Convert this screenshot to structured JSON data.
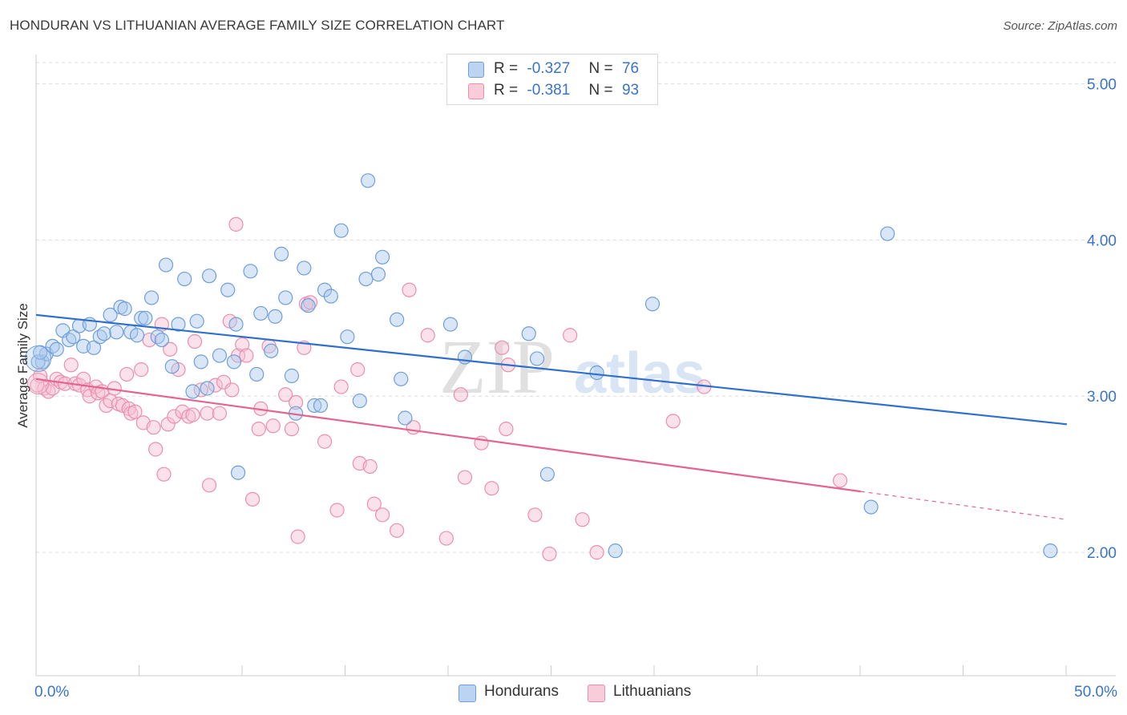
{
  "title": "HONDURAN VS LITHUANIAN AVERAGE FAMILY SIZE CORRELATION CHART",
  "source": "Source: ZipAtlas.com",
  "watermark": {
    "zip": "ZIP",
    "atlas": "atlas"
  },
  "legend": {
    "rows": [
      {
        "r_label": "R =",
        "r_value": "-0.327",
        "n_label": "N =",
        "n_value": "76"
      },
      {
        "r_label": "R =",
        "r_value": "-0.381",
        "n_label": "N =",
        "n_value": "93"
      }
    ]
  },
  "bottom_legend": {
    "hondurans": "Hondurans",
    "lithuanians": "Lithuanians"
  },
  "colors": {
    "blue_fill": "#a9c8ee",
    "blue_stroke": "#6f9fd8",
    "blue_line": "#2f6fcd",
    "pink_fill": "#f6bfd0",
    "pink_stroke": "#eb8fae",
    "pink_line": "#e3648f",
    "axis_text": "#3a74c7",
    "grid": "#dddddd"
  },
  "chart_data": {
    "type": "scatter",
    "title": "HONDURAN VS LITHUANIAN AVERAGE FAMILY SIZE CORRELATION CHART",
    "xlabel": "",
    "ylabel": "Average Family Size",
    "xlim": [
      0,
      50
    ],
    "ylim": [
      1.2,
      5.1
    ],
    "x_tick_labels": [
      "0.0%",
      "50.0%"
    ],
    "y_ticks": [
      2.0,
      3.0,
      4.0,
      5.0
    ],
    "y_tick_labels": [
      "2.00",
      "3.00",
      "4.00",
      "5.00"
    ],
    "series": [
      {
        "name": "Hondurans",
        "r": -0.327,
        "n": 76,
        "trend": {
          "x0": 0,
          "y0": 3.52,
          "x1": 50,
          "y1": 2.82
        },
        "points": [
          [
            0.3,
            3.22
          ],
          [
            0.5,
            3.27
          ],
          [
            0.8,
            3.32
          ],
          [
            1.0,
            3.3
          ],
          [
            1.3,
            3.42
          ],
          [
            1.6,
            3.36
          ],
          [
            1.8,
            3.38
          ],
          [
            2.1,
            3.45
          ],
          [
            2.3,
            3.32
          ],
          [
            2.6,
            3.46
          ],
          [
            2.8,
            3.31
          ],
          [
            3.1,
            3.38
          ],
          [
            3.3,
            3.4
          ],
          [
            3.6,
            3.52
          ],
          [
            3.9,
            3.41
          ],
          [
            4.1,
            3.57
          ],
          [
            4.3,
            3.56
          ],
          [
            4.6,
            3.41
          ],
          [
            4.9,
            3.39
          ],
          [
            5.1,
            3.5
          ],
          [
            5.3,
            3.5
          ],
          [
            5.6,
            3.63
          ],
          [
            5.9,
            3.38
          ],
          [
            6.1,
            3.36
          ],
          [
            6.3,
            3.84
          ],
          [
            6.6,
            3.19
          ],
          [
            6.9,
            3.46
          ],
          [
            7.2,
            3.75
          ],
          [
            7.6,
            3.03
          ],
          [
            7.8,
            3.48
          ],
          [
            8.0,
            3.22
          ],
          [
            8.3,
            3.05
          ],
          [
            8.4,
            3.77
          ],
          [
            8.9,
            3.26
          ],
          [
            9.3,
            3.68
          ],
          [
            9.6,
            3.22
          ],
          [
            9.7,
            3.46
          ],
          [
            9.8,
            2.51
          ],
          [
            10.4,
            3.8
          ],
          [
            10.7,
            3.14
          ],
          [
            10.9,
            3.53
          ],
          [
            11.4,
            3.29
          ],
          [
            11.6,
            3.51
          ],
          [
            11.9,
            3.91
          ],
          [
            12.1,
            3.63
          ],
          [
            12.4,
            3.13
          ],
          [
            12.6,
            2.89
          ],
          [
            13.0,
            3.82
          ],
          [
            13.2,
            3.58
          ],
          [
            13.5,
            2.94
          ],
          [
            13.8,
            2.94
          ],
          [
            14.0,
            3.68
          ],
          [
            14.3,
            3.64
          ],
          [
            14.8,
            4.06
          ],
          [
            15.1,
            3.38
          ],
          [
            15.7,
            2.97
          ],
          [
            16.0,
            3.75
          ],
          [
            16.1,
            4.38
          ],
          [
            16.6,
            3.78
          ],
          [
            16.8,
            3.89
          ],
          [
            17.5,
            3.49
          ],
          [
            17.7,
            3.11
          ],
          [
            17.9,
            2.86
          ],
          [
            20.1,
            3.46
          ],
          [
            20.8,
            3.25
          ],
          [
            23.9,
            3.4
          ],
          [
            24.3,
            3.24
          ],
          [
            24.8,
            2.5
          ],
          [
            27.2,
            3.15
          ],
          [
            28.1,
            2.01
          ],
          [
            29.9,
            3.59
          ],
          [
            40.5,
            2.29
          ],
          [
            41.3,
            4.04
          ],
          [
            49.2,
            2.01
          ],
          [
            0.1,
            3.22
          ],
          [
            0.2,
            3.28
          ]
        ]
      },
      {
        "name": "Lithuanians",
        "r": -0.381,
        "n": 93,
        "trend": {
          "x0": 0,
          "y0": 3.11,
          "x1": 40,
          "y1": 2.39,
          "dash_to_x": 50,
          "dash_to_y": 2.21
        },
        "points": [
          [
            0.2,
            3.13
          ],
          [
            0.4,
            3.05
          ],
          [
            0.6,
            3.03
          ],
          [
            0.8,
            3.05
          ],
          [
            1.0,
            3.11
          ],
          [
            1.2,
            3.09
          ],
          [
            1.4,
            3.08
          ],
          [
            1.7,
            3.2
          ],
          [
            1.9,
            3.08
          ],
          [
            2.1,
            3.07
          ],
          [
            2.3,
            3.11
          ],
          [
            2.5,
            3.04
          ],
          [
            2.6,
            3.0
          ],
          [
            2.9,
            3.06
          ],
          [
            3.0,
            3.02
          ],
          [
            3.2,
            3.03
          ],
          [
            3.4,
            2.94
          ],
          [
            3.6,
            2.97
          ],
          [
            3.8,
            3.05
          ],
          [
            4.0,
            2.95
          ],
          [
            4.2,
            2.94
          ],
          [
            4.4,
            3.14
          ],
          [
            4.5,
            2.92
          ],
          [
            4.6,
            2.89
          ],
          [
            4.8,
            2.9
          ],
          [
            5.1,
            3.17
          ],
          [
            5.2,
            2.83
          ],
          [
            5.5,
            3.36
          ],
          [
            5.7,
            2.8
          ],
          [
            5.8,
            2.66
          ],
          [
            6.1,
            3.46
          ],
          [
            6.2,
            2.5
          ],
          [
            6.4,
            2.82
          ],
          [
            6.5,
            3.3
          ],
          [
            6.7,
            2.87
          ],
          [
            6.9,
            3.17
          ],
          [
            7.1,
            2.9
          ],
          [
            7.4,
            2.87
          ],
          [
            7.6,
            2.88
          ],
          [
            7.7,
            3.35
          ],
          [
            8.0,
            3.04
          ],
          [
            8.3,
            2.89
          ],
          [
            8.4,
            2.43
          ],
          [
            8.7,
            3.07
          ],
          [
            8.9,
            2.89
          ],
          [
            9.1,
            3.09
          ],
          [
            9.4,
            3.48
          ],
          [
            9.5,
            3.04
          ],
          [
            9.7,
            4.1
          ],
          [
            9.8,
            3.26
          ],
          [
            10.0,
            3.33
          ],
          [
            10.2,
            3.26
          ],
          [
            10.5,
            2.34
          ],
          [
            10.8,
            2.79
          ],
          [
            10.9,
            2.92
          ],
          [
            11.3,
            3.32
          ],
          [
            11.5,
            2.81
          ],
          [
            12.1,
            3.01
          ],
          [
            12.4,
            2.79
          ],
          [
            12.6,
            2.96
          ],
          [
            12.7,
            2.1
          ],
          [
            13.0,
            3.31
          ],
          [
            13.1,
            3.59
          ],
          [
            13.3,
            3.6
          ],
          [
            14.0,
            2.71
          ],
          [
            14.6,
            2.27
          ],
          [
            14.8,
            3.06
          ],
          [
            15.6,
            3.17
          ],
          [
            15.7,
            2.57
          ],
          [
            16.2,
            2.55
          ],
          [
            16.4,
            2.31
          ],
          [
            16.8,
            2.24
          ],
          [
            17.5,
            2.14
          ],
          [
            18.1,
            3.68
          ],
          [
            18.3,
            2.8
          ],
          [
            19.0,
            3.39
          ],
          [
            19.9,
            2.09
          ],
          [
            20.6,
            3.01
          ],
          [
            20.8,
            2.48
          ],
          [
            21.6,
            2.7
          ],
          [
            22.1,
            2.41
          ],
          [
            22.6,
            3.31
          ],
          [
            22.8,
            2.79
          ],
          [
            22.9,
            3.2
          ],
          [
            24.2,
            2.24
          ],
          [
            24.9,
            1.99
          ],
          [
            25.9,
            3.39
          ],
          [
            26.5,
            2.21
          ],
          [
            27.2,
            2.0
          ],
          [
            30.9,
            2.84
          ],
          [
            32.4,
            3.06
          ],
          [
            39.0,
            2.46
          ],
          [
            0.05,
            3.07
          ]
        ]
      }
    ]
  }
}
